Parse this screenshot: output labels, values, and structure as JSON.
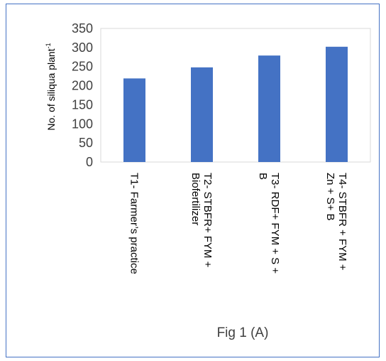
{
  "chart_data": {
    "type": "bar",
    "categories": [
      [
        "T1- Farmer’s practice"
      ],
      [
        "T2- STBFR+ FYM +",
        "Biofertilizer"
      ],
      [
        "T3- RDF+ FYM + S +",
        "B"
      ],
      [
        "T4- STBFR + FYM +",
        "Zn + S+ B"
      ]
    ],
    "values": [
      219,
      248,
      279,
      302
    ],
    "ylabel": "No. of siliqua plant",
    "ylabel_sup": "-1",
    "ylim": [
      0,
      350
    ],
    "yticks": [
      0,
      50,
      100,
      150,
      200,
      250,
      300,
      350
    ],
    "grid": false,
    "bar_color": "#4472C4",
    "axis_color": "#D9D9D9"
  },
  "caption": "Fig 1 (A)"
}
